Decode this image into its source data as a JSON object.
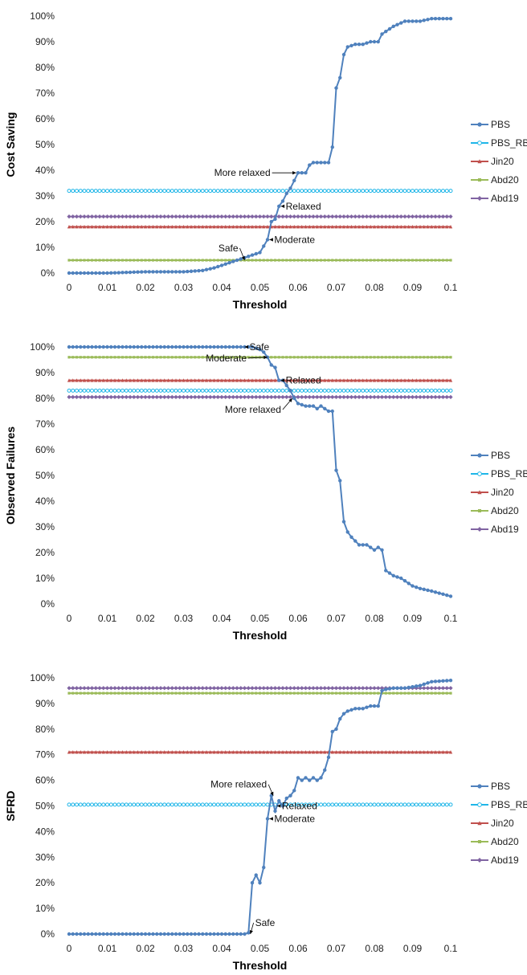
{
  "colors": {
    "PBS": "#4F81BD",
    "PBS_RB": "#1FB6E8",
    "Jin20": "#C0504D",
    "Abd20": "#9BBB59",
    "Abd19": "#8064A2"
  },
  "chart_data": [
    {
      "type": "line",
      "ylabel": "Cost Saving",
      "xlabel": "Threshold",
      "xlim": [
        0,
        0.1
      ],
      "ylim": [
        0,
        100
      ],
      "x_ticks": [
        "0",
        "0.01",
        "0.02",
        "0.03",
        "0.04",
        "0.05",
        "0.06",
        "0.07",
        "0.08",
        "0.09",
        "0.1"
      ],
      "y_ticks": [
        "0%",
        "10%",
        "20%",
        "30%",
        "40%",
        "50%",
        "60%",
        "70%",
        "80%",
        "90%",
        "100%"
      ],
      "legend": [
        "PBS",
        "PBS_RB",
        "Jin20",
        "Abd20",
        "Abd19"
      ],
      "legend_position": "right",
      "series": [
        {
          "name": "PBS",
          "x": [
            0,
            0.01,
            0.02,
            0.03,
            0.035,
            0.038,
            0.04,
            0.042,
            0.044,
            0.046,
            0.048,
            0.05,
            0.052,
            0.053,
            0.054,
            0.055,
            0.056,
            0.057,
            0.058,
            0.059,
            0.06,
            0.062,
            0.063,
            0.064,
            0.066,
            0.068,
            0.069,
            0.07,
            0.071,
            0.072,
            0.073,
            0.075,
            0.077,
            0.079,
            0.081,
            0.082,
            0.083,
            0.085,
            0.088,
            0.09,
            0.092,
            0.095,
            0.1
          ],
          "y": [
            0,
            0,
            0.5,
            0.5,
            1,
            2,
            3,
            4,
            5,
            6,
            7,
            8,
            13,
            20,
            21,
            26,
            28,
            31,
            33,
            36,
            39,
            39,
            42,
            43,
            43,
            43,
            49,
            72,
            76,
            85,
            88,
            89,
            89,
            90,
            90,
            93,
            94,
            96,
            98,
            98,
            98,
            99,
            99
          ]
        },
        {
          "name": "PBS_RB",
          "value": 32
        },
        {
          "name": "Jin20",
          "value": 18
        },
        {
          "name": "Abd20",
          "value": 5
        },
        {
          "name": "Abd19",
          "value": 22
        }
      ],
      "annotations": [
        {
          "text": "More relaxed",
          "x": 0.0595,
          "y": 39
        },
        {
          "text": "Relaxed",
          "x": 0.0555,
          "y": 26
        },
        {
          "text": "Moderate",
          "x": 0.0525,
          "y": 13
        },
        {
          "text": "Safe",
          "x": 0.046,
          "y": 5
        }
      ]
    },
    {
      "type": "line",
      "ylabel": "Observed Failures",
      "xlabel": "Threshold",
      "xlim": [
        0,
        0.1
      ],
      "ylim": [
        0,
        100
      ],
      "x_ticks": [
        "0",
        "0.01",
        "0.02",
        "0.03",
        "0.04",
        "0.05",
        "0.06",
        "0.07",
        "0.08",
        "0.09",
        "0.1"
      ],
      "y_ticks": [
        "0%",
        "10%",
        "20%",
        "30%",
        "40%",
        "50%",
        "60%",
        "70%",
        "80%",
        "90%",
        "100%"
      ],
      "legend": [
        "PBS",
        "PBS_RB",
        "Jin20",
        "Abd20",
        "Abd19"
      ],
      "legend_position": "right",
      "series": [
        {
          "name": "PBS",
          "x": [
            0,
            0.01,
            0.02,
            0.03,
            0.04,
            0.046,
            0.048,
            0.05,
            0.051,
            0.052,
            0.053,
            0.054,
            0.055,
            0.056,
            0.057,
            0.058,
            0.059,
            0.06,
            0.062,
            0.064,
            0.065,
            0.066,
            0.067,
            0.068,
            0.069,
            0.07,
            0.071,
            0.072,
            0.073,
            0.074,
            0.076,
            0.078,
            0.08,
            0.081,
            0.082,
            0.083,
            0.085,
            0.087,
            0.09,
            0.092,
            0.095,
            0.1
          ],
          "y": [
            100,
            100,
            100,
            100,
            100,
            100,
            100,
            99,
            98,
            96,
            93,
            92,
            87,
            87,
            85,
            83,
            80,
            78,
            77,
            77,
            76,
            77,
            76,
            75,
            75,
            52,
            48,
            32,
            28,
            26,
            23,
            23,
            21,
            22,
            21,
            13,
            11,
            10,
            7,
            6,
            5,
            3
          ]
        },
        {
          "name": "PBS_RB",
          "value": 83
        },
        {
          "name": "Jin20",
          "value": 87
        },
        {
          "name": "Abd20",
          "value": 96
        },
        {
          "name": "Abd19",
          "value": 80.5
        }
      ],
      "annotations": [
        {
          "text": "Safe",
          "x": 0.046,
          "y": 100
        },
        {
          "text": "Moderate",
          "x": 0.052,
          "y": 96
        },
        {
          "text": "Relaxed",
          "x": 0.0555,
          "y": 87
        },
        {
          "text": "More relaxed",
          "x": 0.0585,
          "y": 80
        }
      ]
    },
    {
      "type": "line",
      "ylabel": "SFRD",
      "xlabel": "Threshold",
      "xlim": [
        0,
        0.1
      ],
      "ylim": [
        0,
        100
      ],
      "x_ticks": [
        "0",
        "0.01",
        "0.02",
        "0.03",
        "0.04",
        "0.05",
        "0.06",
        "0.07",
        "0.08",
        "0.09",
        "0.1"
      ],
      "y_ticks": [
        "0%",
        "10%",
        "20%",
        "30%",
        "40%",
        "50%",
        "60%",
        "70%",
        "80%",
        "90%",
        "100%"
      ],
      "legend": [
        "PBS",
        "PBS_RB",
        "Jin20",
        "Abd20",
        "Abd19"
      ],
      "legend_position": "right",
      "series": [
        {
          "name": "PBS",
          "x": [
            0,
            0.01,
            0.02,
            0.03,
            0.04,
            0.046,
            0.047,
            0.048,
            0.049,
            0.05,
            0.051,
            0.052,
            0.053,
            0.054,
            0.055,
            0.056,
            0.057,
            0.058,
            0.059,
            0.06,
            0.061,
            0.062,
            0.063,
            0.064,
            0.065,
            0.066,
            0.067,
            0.068,
            0.069,
            0.07,
            0.071,
            0.072,
            0.073,
            0.075,
            0.077,
            0.079,
            0.081,
            0.082,
            0.083,
            0.085,
            0.088,
            0.09,
            0.092,
            0.095,
            0.1
          ],
          "y": [
            0,
            0,
            0,
            0,
            0,
            0,
            0.5,
            20,
            23,
            20,
            26,
            45,
            54,
            48,
            52,
            50,
            53,
            54,
            56,
            61,
            60,
            61,
            60,
            61,
            60,
            61,
            64,
            69,
            79,
            80,
            84,
            86,
            87,
            88,
            88,
            89,
            89,
            95,
            95.5,
            96,
            96,
            96.5,
            97,
            98.5,
            99
          ]
        },
        {
          "name": "PBS_RB",
          "value": 50.5
        },
        {
          "name": "Jin20",
          "value": 71
        },
        {
          "name": "Abd20",
          "value": 94
        },
        {
          "name": "Abd19",
          "value": 96
        }
      ],
      "annotations": [
        {
          "text": "More relaxed",
          "x": 0.0535,
          "y": 54
        },
        {
          "text": "Relaxed",
          "x": 0.0545,
          "y": 50
        },
        {
          "text": "Moderate",
          "x": 0.0525,
          "y": 45
        },
        {
          "text": "Safe",
          "x": 0.0475,
          "y": 0
        }
      ]
    }
  ]
}
